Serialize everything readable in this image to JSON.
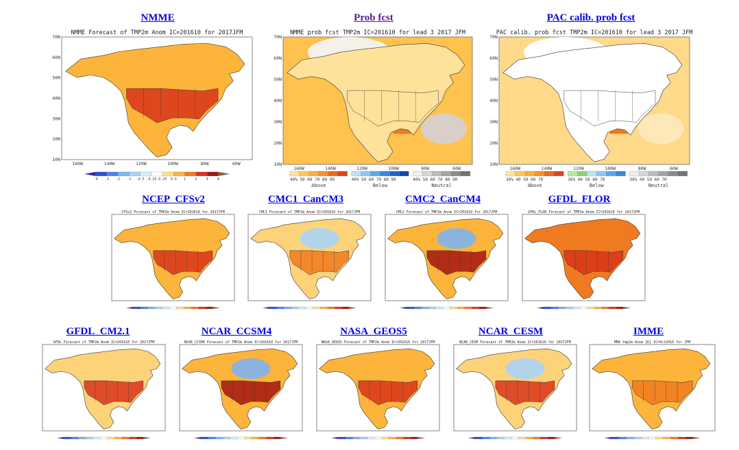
{
  "links": [
    {
      "id": "nmme",
      "label": "NMME",
      "visited": false
    },
    {
      "id": "prob",
      "label": "Prob fcst",
      "visited": true
    },
    {
      "id": "pac",
      "label": "PAC calib. prob fcst",
      "visited": false
    },
    {
      "id": "cfsv2",
      "label": "NCEP_CFSv2",
      "visited": false
    },
    {
      "id": "cancm3",
      "label": "CMC1_CanCM3",
      "visited": false
    },
    {
      "id": "cancm4",
      "label": "CMC2_CanCM4",
      "visited": false
    },
    {
      "id": "flor",
      "label": "GFDL_FLOR",
      "visited": false
    },
    {
      "id": "cm21",
      "label": "GFDL_CM2.1",
      "visited": false
    },
    {
      "id": "ccsm4",
      "label": "NCAR_CCSM4",
      "visited": false
    },
    {
      "id": "geos5",
      "label": "NASA_GEOS5",
      "visited": false
    },
    {
      "id": "cesm",
      "label": "NCAR_CESM",
      "visited": false
    },
    {
      "id": "imme",
      "label": "IMME",
      "visited": false
    }
  ],
  "maps": [
    {
      "id": "nmme",
      "title": "NMME Forecast of TMP2m Anom  IC=201610 for 2017JFM",
      "kind": "anom",
      "lat_ticks": [
        "70N",
        "60N",
        "50N",
        "40N",
        "30N",
        "20N",
        "10N"
      ],
      "lon_ticks": [
        "160W",
        "140W",
        "120W",
        "100W",
        "80W",
        "60W"
      ],
      "colorbar": [
        "-4",
        "-3",
        "-2",
        "-1",
        "-0.5",
        "-0.25",
        "0.25",
        "0.5",
        "1",
        "2",
        "3",
        "4"
      ]
    },
    {
      "id": "prob",
      "title": "NMME prob fcst TMP2m IC=201610 for lead 3 2017 JFM",
      "kind": "prob",
      "lat_ticks": [
        "70N",
        "60N",
        "50N",
        "40N",
        "30N",
        "20N",
        "10N"
      ],
      "lon_ticks": [
        "160W",
        "140W",
        "120W",
        "100W",
        "80W",
        "60W"
      ],
      "legend": [
        {
          "label": "Above",
          "ticks": "40% 50  60  70  80  90"
        },
        {
          "label": "Below",
          "ticks": "40% 50  60  70  80  90"
        },
        {
          "label": "Neutral",
          "ticks": "40% 50  60  70  80  90"
        }
      ]
    },
    {
      "id": "pac",
      "title": "PAC calib. prob fcst TMP2m IC=201610 for lead 3 2017 JFM",
      "kind": "prob",
      "lat_ticks": [
        "70N",
        "60N",
        "50N",
        "40N",
        "30N",
        "20N",
        "10N"
      ],
      "lon_ticks": [
        "160W",
        "140W",
        "120W",
        "100W",
        "80W",
        "60W"
      ],
      "legend": [
        {
          "label": "Above",
          "ticks": "36% 40 50 60 70"
        },
        {
          "label": "Below",
          "ticks": "36% 40 50 60 70"
        },
        {
          "label": "Neutral",
          "ticks": "36% 40 50 60 70"
        }
      ]
    },
    {
      "id": "cfsv2",
      "title": "CFSv2 Forecast of TMP2m Anom  IC=201610 for 2017JFM",
      "kind": "anom"
    },
    {
      "id": "cancm3",
      "title": "CMC1 Forecast of TMP2m Anom  IC=201610 for 2017JFM",
      "kind": "anom"
    },
    {
      "id": "cancm4",
      "title": "CMC2 Forecast of TMP2m Anom  IC=201610 for 2017JFM",
      "kind": "anom"
    },
    {
      "id": "flor",
      "title": "GFDL_FLOR Forecast of TMP2m Anom  IC=201610 for 2017JFM",
      "kind": "anom"
    },
    {
      "id": "cm21",
      "title": "GFDL Forecast of TMP2m Anom  IC=201610 for 2017JFM",
      "kind": "anom"
    },
    {
      "id": "ccsm4",
      "title": "NCAR_CCSM4 Forecast of TMP2m Anom  IC=201610 for 2017JFM",
      "kind": "anom"
    },
    {
      "id": "geos5",
      "title": "NASA_GEOS5 Forecast of TMP2m Anom  IC=201610 for 2017JFM",
      "kind": "anom"
    },
    {
      "id": "cesm",
      "title": "NCAR_CESM Forecast of TMP2m Anom  IC=201610 for 2017JFM",
      "kind": "anom"
    },
    {
      "id": "imme",
      "title": "MMA tmp2m Anom [K]  IC=Oct2016 for JFM",
      "kind": "anom"
    }
  ],
  "colors": {
    "link": "#0000ee",
    "visited": "#551a8b",
    "anom_scale": [
      "#3f1a99",
      "#2b4fd8",
      "#4a86e8",
      "#7fb3f0",
      "#a9d4f7",
      "#d8eefb",
      "#ffffff",
      "#ffe08a",
      "#fdb43a",
      "#f07a1f",
      "#d8341a",
      "#a3150f",
      "#8c5a3c"
    ],
    "ocean_prob": "#ffcf6e",
    "ocean_white": "#ffffff"
  }
}
